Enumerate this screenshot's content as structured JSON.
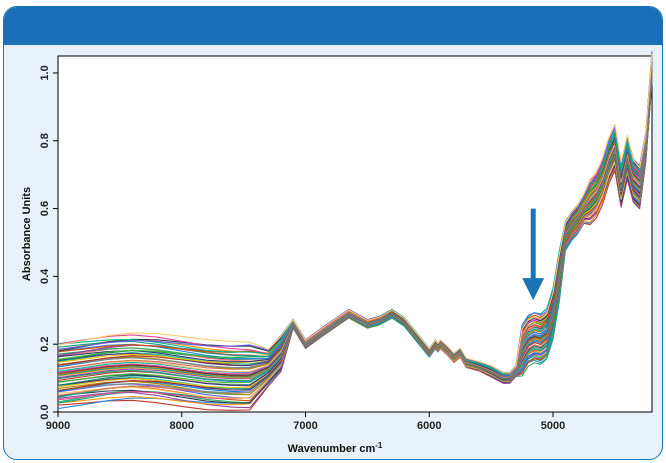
{
  "chart_data": {
    "type": "line",
    "title": "",
    "xlabel": "Wavenumber cm",
    "xlabel_superscript": "-1",
    "ylabel": "Absorbance Units",
    "xlim": [
      9000,
      4200
    ],
    "ylim": [
      0.0,
      1.05
    ],
    "x_reversed": true,
    "xticks": [
      9000,
      8000,
      7000,
      6000,
      5000
    ],
    "xtick_labels": [
      "9000",
      "8000",
      "7000",
      "6000",
      "5000"
    ],
    "yticks": [
      0.0,
      0.2,
      0.4,
      0.6,
      0.8,
      1.0
    ],
    "ytick_labels": [
      "0.0",
      "0.2",
      "0.4",
      "0.6",
      "0.8",
      "1.0"
    ],
    "grid": false,
    "legend": "none",
    "series_count": 60,
    "representative_spectrum": {
      "x": [
        9000,
        8800,
        8600,
        8400,
        8200,
        8000,
        7800,
        7600,
        7450,
        7300,
        7200,
        7100,
        7000,
        6850,
        6650,
        6500,
        6400,
        6300,
        6200,
        6100,
        6000,
        5950,
        5930,
        5910,
        5850,
        5800,
        5750,
        5700,
        5600,
        5500,
        5450,
        5400,
        5350,
        5300,
        5250,
        5200,
        5150,
        5100,
        5050,
        5000,
        4950,
        4900,
        4850,
        4800,
        4750,
        4700,
        4650,
        4600,
        4550,
        4500,
        4450,
        4400,
        4350,
        4300,
        4250,
        4200
      ],
      "y": [
        0.11,
        0.12,
        0.13,
        0.135,
        0.13,
        0.12,
        0.11,
        0.105,
        0.105,
        0.13,
        0.17,
        0.26,
        0.2,
        0.24,
        0.29,
        0.26,
        0.27,
        0.29,
        0.265,
        0.22,
        0.175,
        0.2,
        0.19,
        0.2,
        0.18,
        0.16,
        0.175,
        0.145,
        0.135,
        0.12,
        0.11,
        0.1,
        0.1,
        0.12,
        0.18,
        0.21,
        0.22,
        0.215,
        0.23,
        0.29,
        0.4,
        0.52,
        0.55,
        0.57,
        0.6,
        0.62,
        0.64,
        0.68,
        0.74,
        0.78,
        0.67,
        0.75,
        0.68,
        0.66,
        0.78,
        1.02
      ]
    },
    "annotation": {
      "type": "arrow",
      "direction": "down",
      "x": 5160,
      "y_from": 0.6,
      "y_to": 0.33,
      "color": "#1a74b8"
    }
  }
}
